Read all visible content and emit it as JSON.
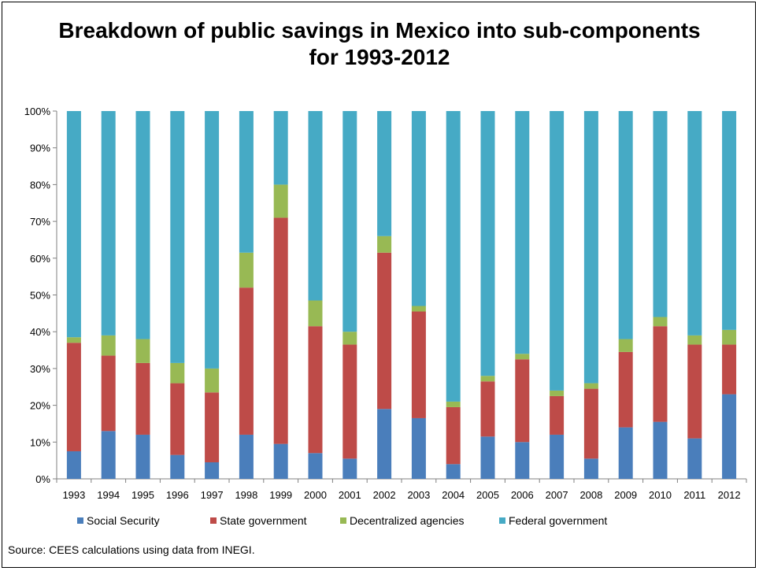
{
  "chart_data": {
    "type": "bar",
    "stacked": true,
    "title": "Breakdown of public savings in Mexico into sub-components for 1993-2012",
    "categories": [
      "1993",
      "1994",
      "1995",
      "1996",
      "1997",
      "1998",
      "1999",
      "2000",
      "2001",
      "2002",
      "2003",
      "2004",
      "2005",
      "2006",
      "2007",
      "2008",
      "2009",
      "2010",
      "2011",
      "2012"
    ],
    "series": [
      {
        "name": "Social Security",
        "color": "#4a7ebb",
        "values": [
          7.5,
          13,
          12,
          6.5,
          4.5,
          12,
          9.5,
          7,
          5.5,
          19,
          16.5,
          4,
          11.5,
          10,
          12,
          5.5,
          14,
          15.5,
          11,
          23
        ]
      },
      {
        "name": "State government",
        "color": "#be4b48",
        "values": [
          29.5,
          20.5,
          19.5,
          19.5,
          19,
          40,
          61.5,
          34.5,
          31,
          42.5,
          29,
          15.5,
          15,
          22.5,
          10.5,
          19,
          20.5,
          26,
          25.5,
          13.5
        ]
      },
      {
        "name": "Decentralized agencies",
        "color": "#98b954",
        "values": [
          1.5,
          5.5,
          6.5,
          5.5,
          6.5,
          9.5,
          9,
          7,
          3.5,
          4.5,
          1.5,
          1.5,
          1.5,
          1.5,
          1.5,
          1.5,
          3.5,
          2.5,
          2.5,
          4
        ]
      },
      {
        "name": "Federal government",
        "color": "#46aac5",
        "values": [
          61.5,
          61,
          62,
          68.5,
          70,
          38.5,
          20,
          51.5,
          60,
          34,
          53,
          79,
          72,
          66,
          76,
          74,
          62,
          56,
          61,
          59.5
        ]
      }
    ],
    "ylim": [
      0,
      100
    ],
    "yticks": [
      "0%",
      "10%",
      "20%",
      "30%",
      "40%",
      "50%",
      "60%",
      "70%",
      "80%",
      "90%",
      "100%"
    ],
    "legend": "bottom",
    "grid": false
  },
  "source": "Source: CEES calculations using data from INEGI."
}
